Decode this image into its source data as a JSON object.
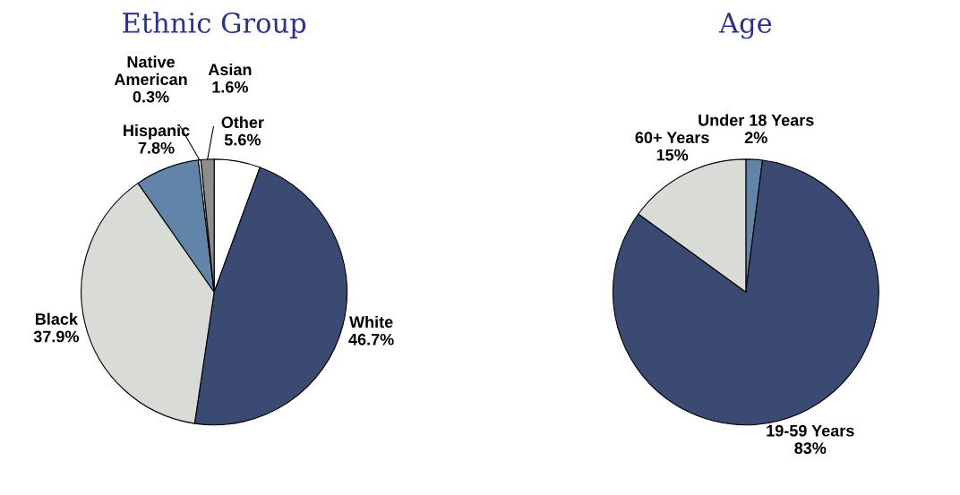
{
  "chart_data": [
    {
      "type": "pie",
      "title": "Ethnic Group",
      "categories": [
        "Other",
        "White",
        "Black",
        "Hispanic",
        "Native American",
        "Asian"
      ],
      "values": [
        5.6,
        46.7,
        37.9,
        7.8,
        0.3,
        1.6
      ],
      "value_labels": [
        "5.6%",
        "46.7%",
        "37.9%",
        "7.8%",
        "0.3%",
        "1.6%"
      ],
      "colors": [
        "#ffffff",
        "#3b4a72",
        "#d9dbd6",
        "#6284a8",
        "#ffffff",
        "#8c8c8c"
      ]
    },
    {
      "type": "pie",
      "title": "Age",
      "categories": [
        "Under 18 Years",
        "19-59 Years",
        "60+ Years"
      ],
      "values": [
        2,
        83,
        15
      ],
      "value_labels": [
        "2%",
        "83%",
        "15%"
      ],
      "colors": [
        "#6284a8",
        "#3b4a72",
        "#d9dbd6"
      ]
    }
  ]
}
